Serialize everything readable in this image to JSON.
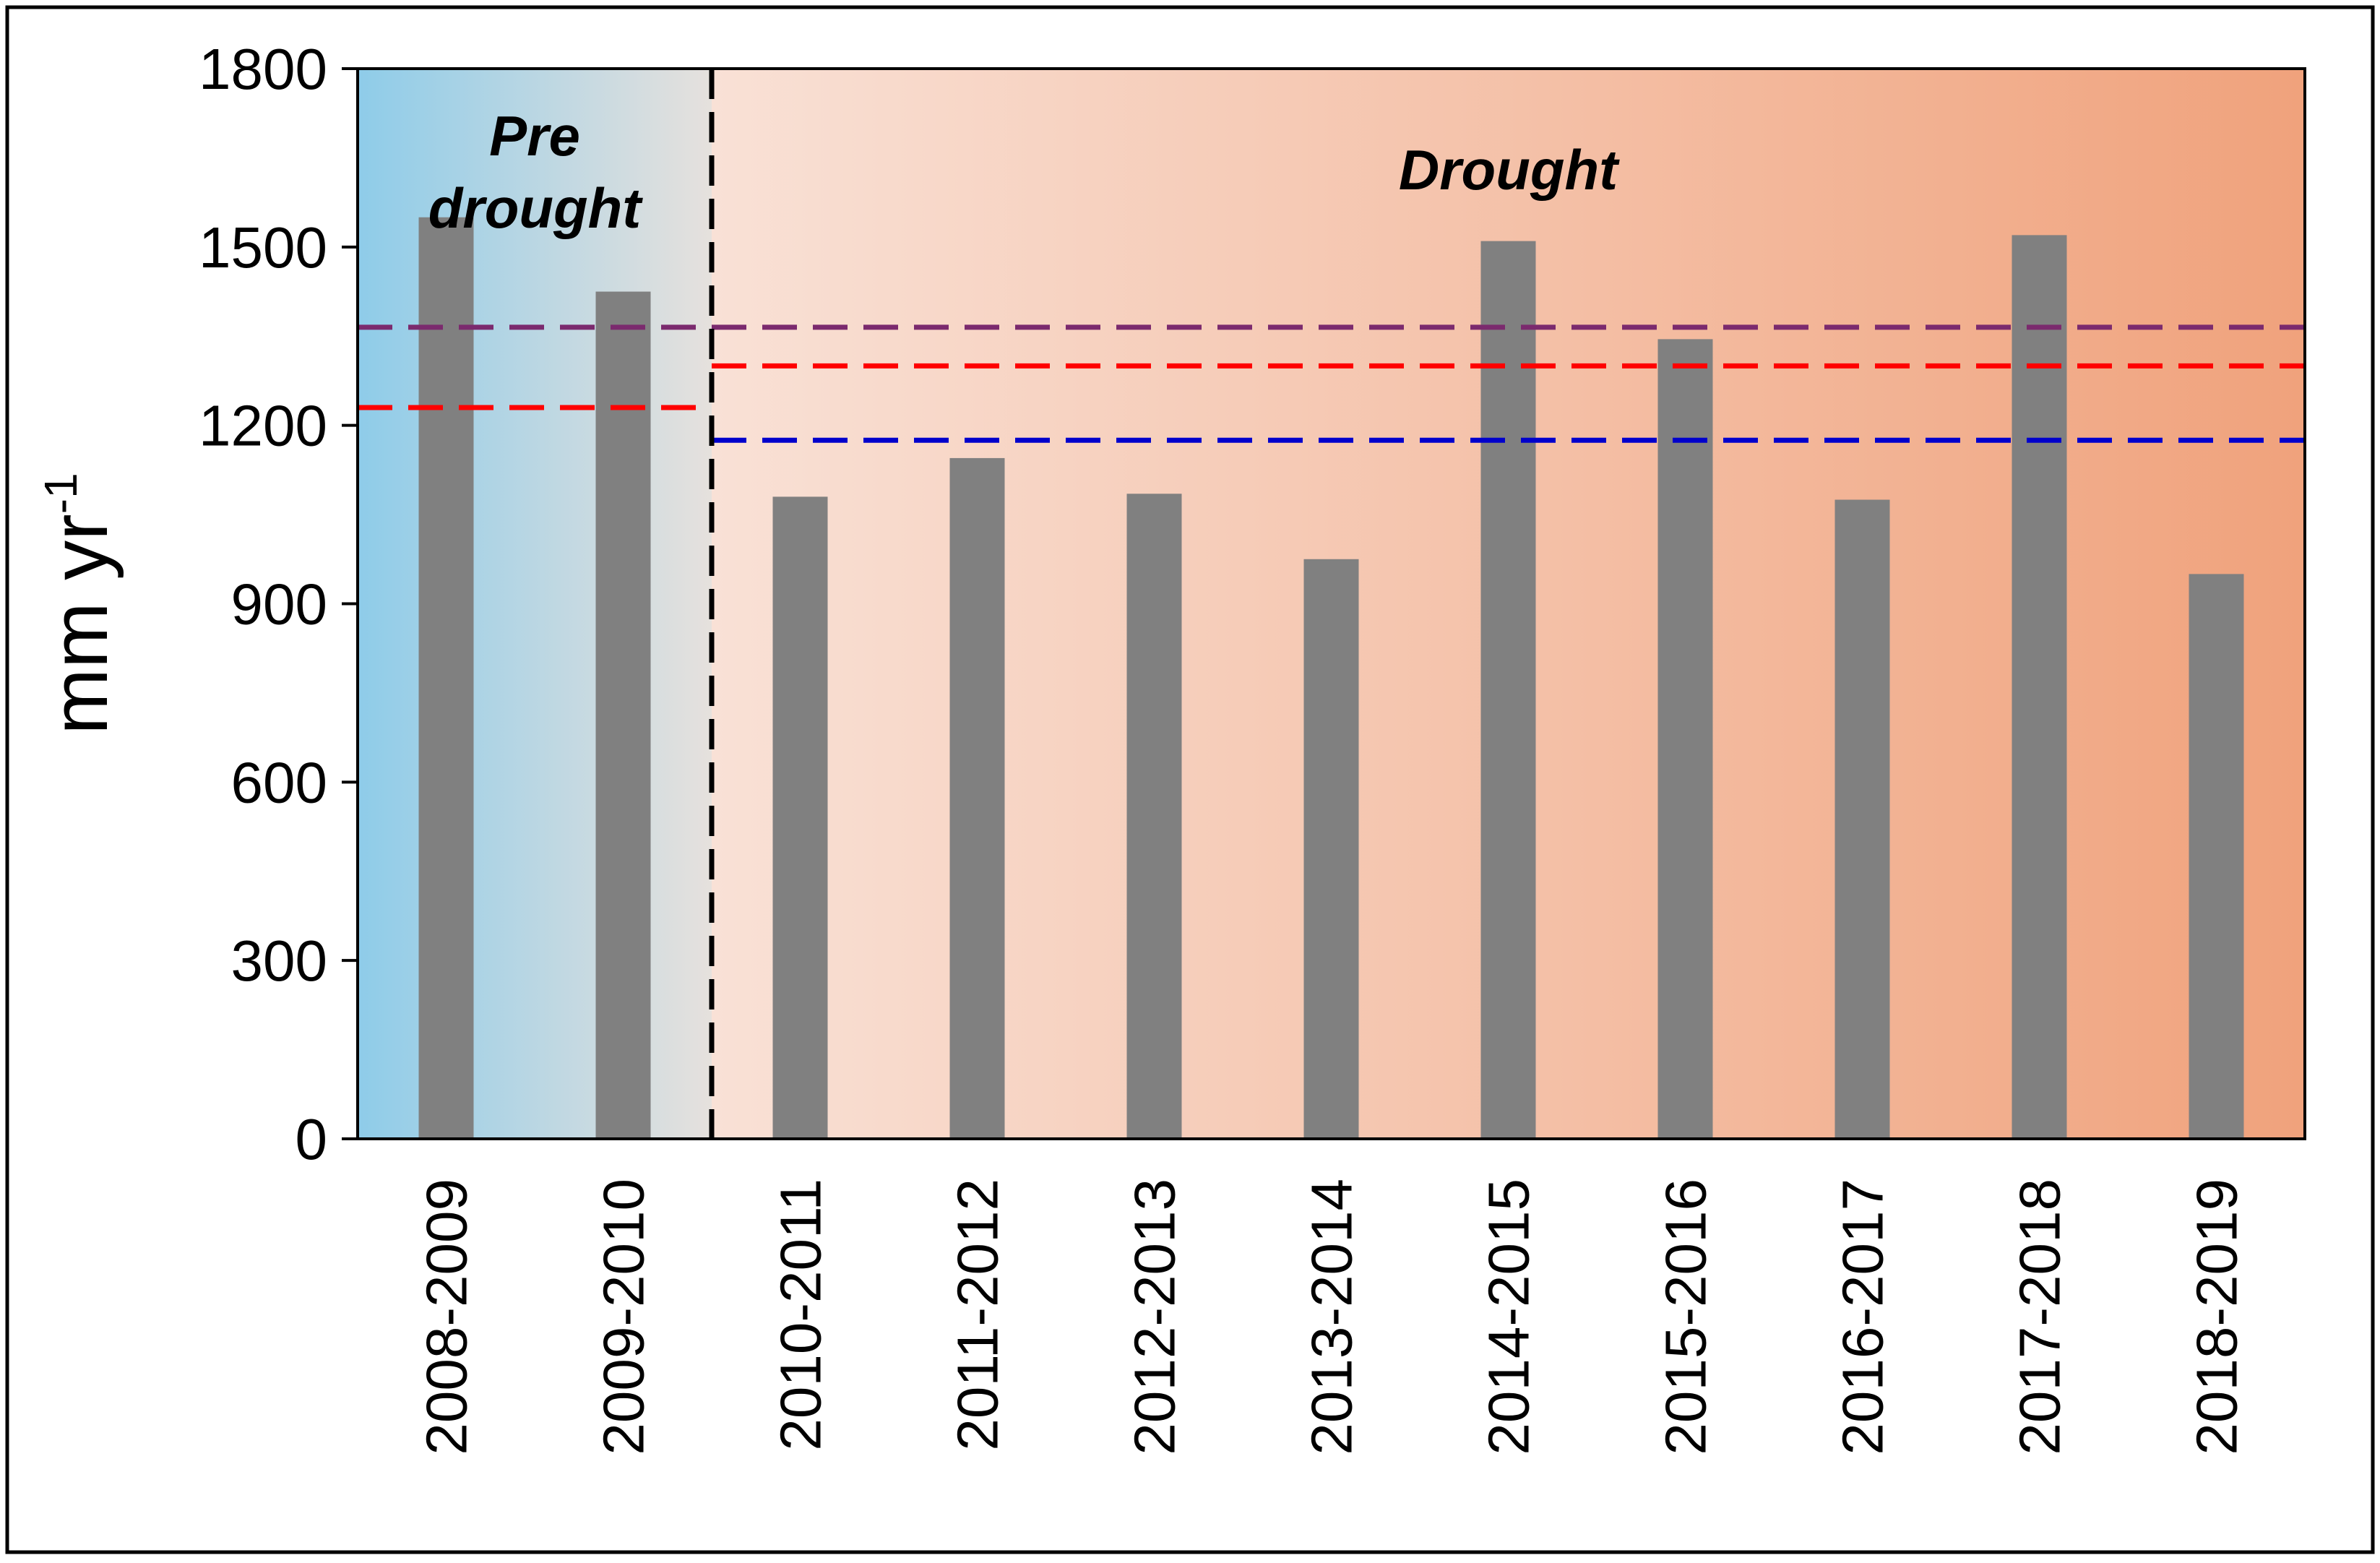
{
  "chart_data": {
    "type": "bar",
    "title": "",
    "xlabel": "",
    "ylabel": "mm yr",
    "ylabel_superscript": "-1",
    "ylim": [
      0,
      1800
    ],
    "yticks": [
      0,
      300,
      600,
      900,
      1200,
      1500,
      1800
    ],
    "categories": [
      "2008-2009",
      "2009-2010",
      "2010-2011",
      "2011-2012",
      "2012-2013",
      "2013-2014",
      "2014-2015",
      "2015-2016",
      "2016-2017",
      "2017-2018",
      "2018-2019"
    ],
    "series": [
      {
        "values": [
          1550,
          1425,
          1080,
          1145,
          1085,
          975,
          1510,
          1345,
          1075,
          1520,
          950
        ],
        "color": "#808080"
      }
    ],
    "periods": [
      {
        "label_lines": [
          "Pre",
          "drought"
        ],
        "start_category": "2008-2009",
        "end_category": "2009-2010",
        "gradient": [
          "#8ecce9",
          "#e6e1dd"
        ]
      },
      {
        "label_lines": [
          "Drought"
        ],
        "start_category": "2010-2011",
        "end_category": "2018-2019",
        "gradient": [
          "#f9e1d6",
          "#f0a27c"
        ]
      }
    ],
    "period_divider": {
      "between": [
        "2009-2010",
        "2010-2011"
      ],
      "style": "dashed",
      "color": "#000000"
    },
    "reference_lines": [
      {
        "value": 1365,
        "color": "#7b2a6e",
        "from_category": "2008-2009",
        "to_category": "2018-2019",
        "style": "dashed"
      },
      {
        "value": 1230,
        "color": "#ff0000",
        "from_category": "2008-2009",
        "to_category": "2009-2010",
        "style": "dashed"
      },
      {
        "value": 1300,
        "color": "#ff0000",
        "from_category": "2010-2011",
        "to_category": "2018-2019",
        "style": "dashed"
      },
      {
        "value": 1175,
        "color": "#0000cc",
        "from_category": "2010-2011",
        "to_category": "2018-2019",
        "style": "dashed"
      }
    ],
    "grid": false,
    "legend": "none"
  }
}
